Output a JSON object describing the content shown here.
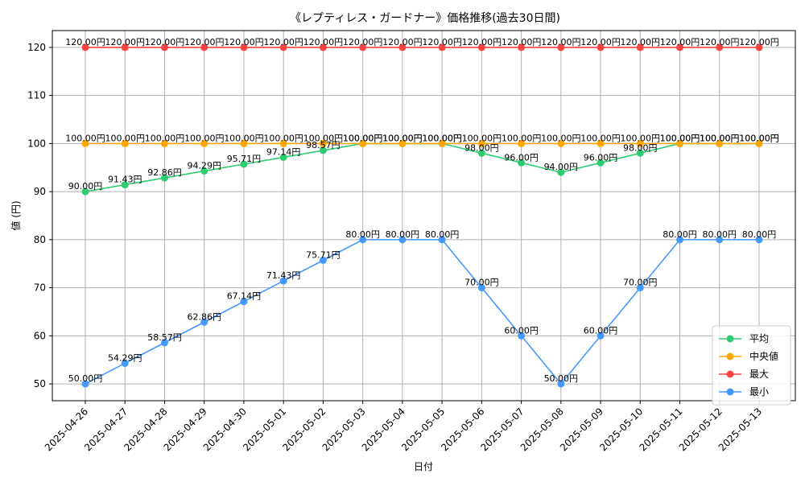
{
  "chart_data": {
    "type": "line",
    "title": "《レプティレス・ガードナー》価格推移(過去30日間)",
    "xlabel": "日付",
    "ylabel": "値 (円)",
    "ylim": [
      46.5,
      123.5
    ],
    "yticks": [
      50,
      60,
      70,
      80,
      90,
      100,
      110,
      120
    ],
    "grid": true,
    "legend_position": "lower-right",
    "value_suffix": "円",
    "categories": [
      "2025-04-26",
      "2025-04-27",
      "2025-04-28",
      "2025-04-29",
      "2025-04-30",
      "2025-05-01",
      "2025-05-02",
      "2025-05-03",
      "2025-05-04",
      "2025-05-05",
      "2025-05-06",
      "2025-05-07",
      "2025-05-08",
      "2025-05-09",
      "2025-05-10",
      "2025-05-11",
      "2025-05-12",
      "2025-05-13"
    ],
    "series": [
      {
        "name": "平均",
        "color": "#2ecc71",
        "values": [
          90.0,
          91.43,
          92.86,
          94.29,
          95.71,
          97.14,
          98.57,
          100.0,
          100.0,
          100.0,
          98.0,
          96.0,
          94.0,
          96.0,
          98.0,
          100.0,
          100.0,
          100.0
        ]
      },
      {
        "name": "中央値",
        "color": "#ffa500",
        "values": [
          100,
          100,
          100,
          100,
          100,
          100,
          100,
          100,
          100,
          100,
          100,
          100,
          100,
          100,
          100,
          100,
          100,
          100
        ]
      },
      {
        "name": "最大",
        "color": "#ff4444",
        "values": [
          120,
          120,
          120,
          120,
          120,
          120,
          120,
          120,
          120,
          120,
          120,
          120,
          120,
          120,
          120,
          120,
          120,
          120
        ]
      },
      {
        "name": "最小",
        "color": "#4499ff",
        "values": [
          50.0,
          54.29,
          58.57,
          62.86,
          67.14,
          71.43,
          75.71,
          80.0,
          80.0,
          80.0,
          70.0,
          60.0,
          50.0,
          60.0,
          70.0,
          80.0,
          80.0,
          80.0
        ]
      }
    ]
  }
}
